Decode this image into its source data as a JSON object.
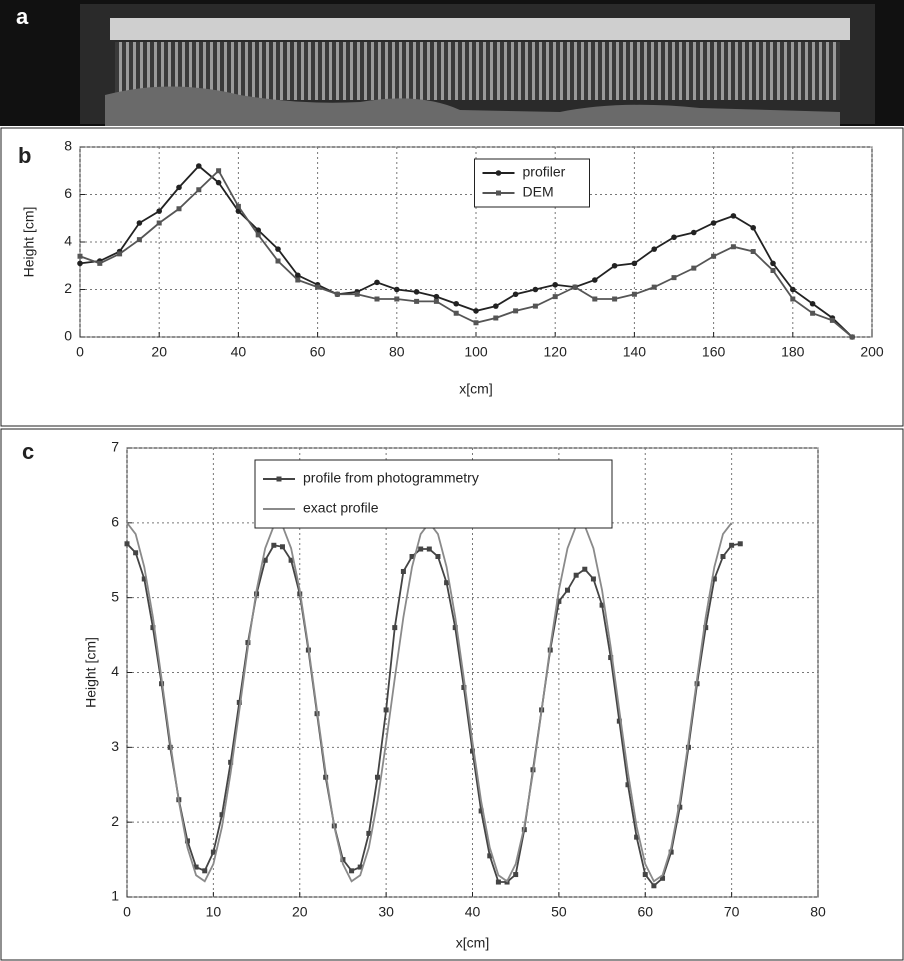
{
  "photo": {
    "label": "a"
  },
  "chart_data": [
    {
      "type": "line",
      "label": "b",
      "xlabel": "x[cm]",
      "ylabel": "Height [cm]",
      "x": [
        0,
        5,
        10,
        15,
        20,
        25,
        30,
        35,
        40,
        45,
        50,
        55,
        60,
        65,
        70,
        75,
        80,
        85,
        90,
        95,
        100,
        105,
        110,
        115,
        120,
        125,
        130,
        135,
        140,
        145,
        150,
        155,
        160,
        165,
        170,
        175,
        180,
        185,
        190,
        195
      ],
      "series": [
        {
          "name": "profiler",
          "color": "#222222",
          "marker": "circle",
          "values": [
            3.1,
            3.2,
            3.6,
            4.8,
            5.3,
            6.3,
            7.2,
            6.5,
            5.3,
            4.5,
            3.7,
            2.6,
            2.2,
            1.8,
            1.9,
            2.3,
            2.0,
            1.9,
            1.7,
            1.4,
            1.1,
            1.3,
            1.8,
            2.0,
            2.2,
            2.1,
            2.4,
            3.0,
            3.1,
            3.7,
            4.2,
            4.4,
            4.8,
            5.1,
            4.6,
            3.1,
            2.0,
            1.4,
            0.8,
            0
          ]
        },
        {
          "name": "DEM",
          "color": "#555555",
          "marker": "square",
          "values": [
            3.4,
            3.1,
            3.5,
            4.1,
            4.8,
            5.4,
            6.2,
            7.0,
            5.5,
            4.3,
            3.2,
            2.4,
            2.1,
            1.8,
            1.8,
            1.6,
            1.6,
            1.5,
            1.5,
            1.0,
            0.6,
            0.8,
            1.1,
            1.3,
            1.7,
            2.1,
            1.6,
            1.6,
            1.8,
            2.1,
            2.5,
            2.9,
            3.4,
            3.8,
            3.6,
            2.8,
            1.6,
            1.0,
            0.7,
            0
          ]
        }
      ],
      "xlim": [
        0,
        200
      ],
      "xticks": [
        0,
        20,
        40,
        60,
        80,
        100,
        120,
        140,
        160,
        180,
        200
      ],
      "ylim": [
        0,
        8
      ],
      "yticks": [
        0,
        2,
        4,
        6,
        8
      ],
      "grid": true,
      "legend_loc": "upper center"
    },
    {
      "type": "line",
      "label": "c",
      "xlabel": "x[cm]",
      "ylabel": "Height [cm]",
      "series": [
        {
          "name": "profile from photogrammetry",
          "color": "#444444",
          "marker": "square",
          "x": [
            0,
            1,
            2,
            3,
            4,
            5,
            6,
            7,
            8,
            9,
            10,
            11,
            12,
            13,
            14,
            15,
            16,
            17,
            18,
            19,
            20,
            21,
            22,
            23,
            24,
            25,
            26,
            27,
            28,
            29,
            30,
            31,
            32,
            33,
            34,
            35,
            36,
            37,
            38,
            39,
            40,
            41,
            42,
            43,
            44,
            45,
            46,
            47,
            48,
            49,
            50,
            51,
            52,
            53,
            54,
            55,
            56,
            57,
            58,
            59,
            60,
            61,
            62,
            63,
            64,
            65,
            66,
            67,
            68,
            69,
            70,
            71
          ],
          "values": [
            5.72,
            5.6,
            5.25,
            4.6,
            3.85,
            3.0,
            2.3,
            1.75,
            1.4,
            1.35,
            1.6,
            2.1,
            2.8,
            3.6,
            4.4,
            5.05,
            5.5,
            5.7,
            5.68,
            5.5,
            5.05,
            4.3,
            3.45,
            2.6,
            1.95,
            1.5,
            1.35,
            1.4,
            1.85,
            2.6,
            3.5,
            4.6,
            5.35,
            5.55,
            5.65,
            5.65,
            5.55,
            5.2,
            4.6,
            3.8,
            2.95,
            2.15,
            1.55,
            1.2,
            1.2,
            1.3,
            1.9,
            2.7,
            3.5,
            4.3,
            4.95,
            5.1,
            5.3,
            5.38,
            5.25,
            4.9,
            4.2,
            3.35,
            2.5,
            1.8,
            1.3,
            1.15,
            1.25,
            1.6,
            2.2,
            3.0,
            3.85,
            4.6,
            5.25,
            5.55,
            5.7,
            5.72
          ]
        },
        {
          "name": "exact profile",
          "color": "#8a8a8a",
          "marker": "none",
          "x": [
            0,
            1,
            2,
            3,
            4,
            5,
            6,
            7,
            8,
            9,
            10,
            11,
            12,
            13,
            14,
            15,
            16,
            17,
            18,
            19,
            20,
            21,
            22,
            23,
            24,
            25,
            26,
            27,
            28,
            29,
            30,
            31,
            32,
            33,
            34,
            35,
            36,
            37,
            38,
            39,
            40,
            41,
            42,
            43,
            44,
            45,
            46,
            47,
            48,
            49,
            50,
            51,
            52,
            53,
            54,
            55,
            56,
            57,
            58,
            59,
            60,
            61,
            62,
            63,
            64,
            65,
            66,
            67,
            68,
            69,
            70
          ],
          "values": [
            6.0,
            5.85,
            5.41,
            4.74,
            3.92,
            3.07,
            2.28,
            1.66,
            1.29,
            1.21,
            1.44,
            1.94,
            2.66,
            3.49,
            4.34,
            5.1,
            5.66,
            5.96,
            5.96,
            5.66,
            5.1,
            4.34,
            3.49,
            2.66,
            1.94,
            1.44,
            1.21,
            1.29,
            1.66,
            2.28,
            3.07,
            3.92,
            4.74,
            5.41,
            5.85,
            6.0,
            5.85,
            5.41,
            4.74,
            3.92,
            3.07,
            2.28,
            1.66,
            1.29,
            1.21,
            1.44,
            1.94,
            2.66,
            3.49,
            4.34,
            5.1,
            5.66,
            5.96,
            5.96,
            5.66,
            5.1,
            4.34,
            3.49,
            2.66,
            1.94,
            1.44,
            1.21,
            1.29,
            1.66,
            2.28,
            3.07,
            3.92,
            4.74,
            5.41,
            5.85,
            6.0
          ]
        }
      ],
      "xlim": [
        0,
        80
      ],
      "xticks": [
        0,
        10,
        20,
        30,
        40,
        50,
        60,
        70,
        80
      ],
      "ylim": [
        1,
        7
      ],
      "yticks": [
        1,
        2,
        3,
        4,
        5,
        6,
        7
      ],
      "grid": true,
      "legend_loc": "upper center"
    }
  ]
}
